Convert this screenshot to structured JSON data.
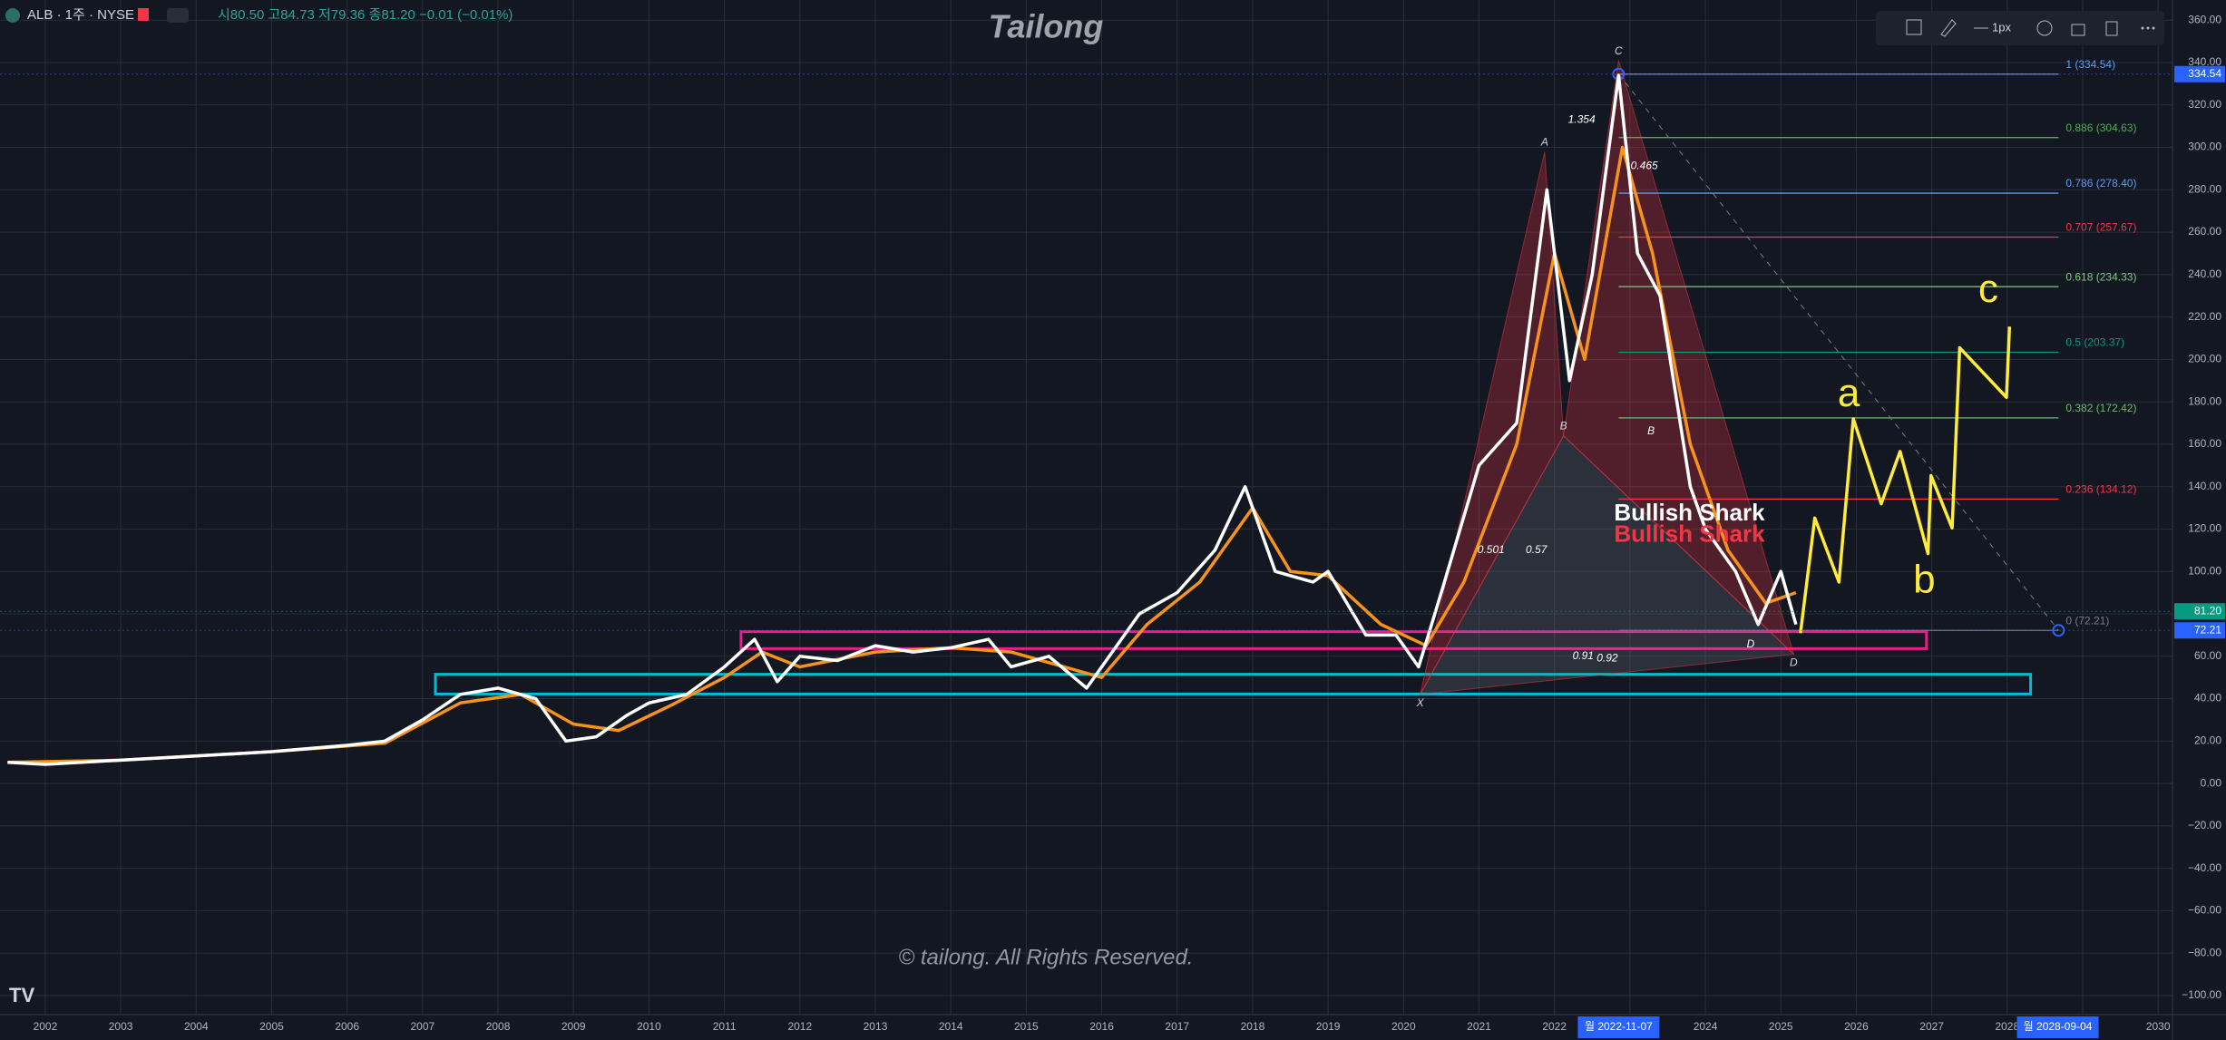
{
  "chart_data": {
    "type": "line",
    "title": "Tailong",
    "symbol": "ALB · 1주 · NYSE",
    "ohlc": "시80.50 고84.73 저79.36 종81.20 −0.01 (−0.01%)",
    "watermark": "© tailong. All Rights Reserved.",
    "toolbar": "1px",
    "grid": true,
    "xlim": [
      2001.4,
      2030.19
    ],
    "ylim": [
      -109,
      369.5
    ],
    "xticks": [
      2002,
      2003,
      2004,
      2005,
      2006,
      2007,
      2008,
      2009,
      2010,
      2011,
      2012,
      2013,
      2014,
      2015,
      2016,
      2017,
      2018,
      2019,
      2020,
      2021,
      2022,
      2023,
      2024,
      2025,
      2026,
      2027,
      2028,
      2029,
      2030
    ],
    "yticks": [
      {
        "value": -100,
        "label": "−100.00"
      },
      {
        "value": -80,
        "label": "−80.00"
      },
      {
        "value": -60,
        "label": "−60.00"
      },
      {
        "value": -40,
        "label": "−40.00"
      },
      {
        "value": -20,
        "label": "−20.00"
      },
      {
        "value": 0,
        "label": "0.00"
      },
      {
        "value": 20,
        "label": "20.00"
      },
      {
        "value": 40,
        "label": "40.00"
      },
      {
        "value": 60,
        "label": "60.00"
      },
      {
        "value": 80,
        "label": "80.00"
      },
      {
        "value": 100,
        "label": "100.00"
      },
      {
        "value": 120,
        "label": "120.00"
      },
      {
        "value": 140,
        "label": "140.00"
      },
      {
        "value": 160,
        "label": "160.00"
      },
      {
        "value": 180,
        "label": "180.00"
      },
      {
        "value": 200,
        "label": "200.00"
      },
      {
        "value": 220,
        "label": "220.00"
      },
      {
        "value": 240,
        "label": "240.00"
      },
      {
        "value": 260,
        "label": "260.00"
      },
      {
        "value": 280,
        "label": "280.00"
      },
      {
        "value": 300,
        "label": "300.00"
      },
      {
        "value": 320,
        "label": "320.00"
      },
      {
        "value": 340,
        "label": "340.00"
      },
      {
        "value": 360,
        "label": "360.00"
      }
    ],
    "series": [
      {
        "color": "#f7931a",
        "x": [
          2001.5,
          2003,
          2005,
          2006.5,
          2007.5,
          2008.3,
          2009,
          2009.6,
          2010.3,
          2011,
          2011.5,
          2012,
          2013,
          2014,
          2014.8,
          2015.5,
          2016,
          2016.6,
          2017.3,
          2018,
          2018.5,
          2019,
          2019.7,
          2020.3,
          2020.8,
          2021.5,
          2022,
          2022.4,
          2022.9,
          2023.3,
          2023.8,
          2024.3,
          2024.8,
          2025.2
        ],
        "values": [
          10,
          11,
          15,
          19,
          38,
          42,
          28,
          25,
          37,
          50,
          62,
          55,
          62,
          64,
          62,
          55,
          50,
          75,
          95,
          130,
          100,
          98,
          75,
          65,
          95,
          160,
          250,
          200,
          300,
          250,
          160,
          110,
          85,
          90
        ]
      },
      {
        "color": "#ffffff",
        "x": [
          2001.5,
          2002,
          2003,
          2004,
          2005,
          2006,
          2006.5,
          2007,
          2007.5,
          2008,
          2008.5,
          2008.9,
          2009.3,
          2009.7,
          2010,
          2010.5,
          2011,
          2011.4,
          2011.7,
          2012,
          2012.5,
          2013,
          2013.5,
          2014,
          2014.5,
          2014.8,
          2015.3,
          2015.8,
          2016,
          2016.5,
          2017,
          2017.5,
          2017.9,
          2018.3,
          2018.8,
          2019,
          2019.5,
          2019.9,
          2020.2,
          2020.5,
          2021,
          2021.5,
          2021.9,
          2022.2,
          2022.5,
          2022.85,
          2023.1,
          2023.4,
          2023.8,
          2024,
          2024.4,
          2024.7,
          2025,
          2025.2
        ],
        "values": [
          10,
          9,
          11,
          13,
          15,
          18,
          20,
          30,
          42,
          45,
          40,
          20,
          22,
          32,
          38,
          42,
          55,
          68,
          48,
          60,
          58,
          65,
          62,
          64,
          68,
          55,
          60,
          45,
          55,
          80,
          90,
          110,
          140,
          100,
          95,
          100,
          70,
          70,
          55,
          90,
          150,
          170,
          280,
          190,
          240,
          334,
          250,
          230,
          140,
          120,
          100,
          75,
          100,
          75
        ]
      },
      {
        "color": "#ffeb3b",
        "x": [
          2025.26,
          2025.45,
          2025.77,
          2025.96,
          2026.33,
          2026.58,
          2026.95,
          2026.99,
          2027.27,
          2027.37,
          2027.99,
          2028.03
        ],
        "values": [
          70.9,
          125.2,
          95,
          172,
          131.9,
          156.6,
          108.4,
          145.2,
          120.5,
          205.5,
          182.1,
          215.5
        ]
      }
    ],
    "fib_x": [
      2022.85,
      2028.68
    ],
    "fib_levels": [
      {
        "label": "1 (334.54)",
        "value": 334.54,
        "color": "#5b9cf6"
      },
      {
        "label": "0.886 (304.63)",
        "value": 304.63,
        "color": "#4caf50"
      },
      {
        "label": "0.786 (278.40)",
        "value": 278.4,
        "color": "#5b9cf6"
      },
      {
        "label": "0.707 (257.67)",
        "value": 257.67,
        "color": "#f23645"
      },
      {
        "label": "0.618 (234.33)",
        "value": 234.33,
        "color": "#81c784"
      },
      {
        "label": "0.5 (203.37)",
        "value": 203.37,
        "color": "#089981"
      },
      {
        "label": "0.382 (172.42)",
        "value": 172.42,
        "color": "#66bb6a"
      },
      {
        "label": "0.236 (134.12)",
        "value": 134.12,
        "color": "#f23645"
      },
      {
        "label": "0 (72.21)",
        "value": 72.21,
        "color": "#787b86"
      }
    ],
    "zones": [
      {
        "color": "#e91e8c",
        "x": [
          2011.22,
          2026.93
        ],
        "y": [
          63.6,
          71.6
        ]
      },
      {
        "color": "#00bcd4",
        "x": [
          2007.17,
          2028.31
        ],
        "y": [
          42.2,
          51.5
        ]
      }
    ],
    "pattern": [
      {
        "label": "X",
        "x": 2020.22,
        "y": 42
      },
      {
        "label": "A",
        "x": 2021.87,
        "y": 297.9
      },
      {
        "label": "B",
        "x": 2022.12,
        "y": 164
      },
      {
        "label": "C",
        "x": 2022.85,
        "y": 341
      },
      {
        "label": "D",
        "x": 2025.17,
        "y": 61
      }
    ],
    "annotations": [
      {
        "text": "1.354",
        "x": 2022.36,
        "y": 313,
        "color": "#ffffff"
      },
      {
        "text": "0.465",
        "x": 2023.19,
        "y": 291,
        "color": "#ffffff"
      },
      {
        "text": "0.501",
        "x": 2021.16,
        "y": 110,
        "color": "#ffffff"
      },
      {
        "text": "0.57",
        "x": 2021.76,
        "y": 110,
        "color": "#ffffff"
      },
      {
        "text": "0.91",
        "x": 2022.38,
        "y": 60,
        "color": "#ffffff"
      },
      {
        "text": "0.92",
        "x": 2022.7,
        "y": 59,
        "color": "#ffffff"
      },
      {
        "text": "B",
        "x": 2023.28,
        "y": 166,
        "color": "#ffffff"
      },
      {
        "text": "D",
        "x": 2024.6,
        "y": 65.6,
        "color": "#ffffff"
      },
      {
        "text": "Bullish Shark",
        "x": 2022.79,
        "y": 127,
        "color": "#ffffff"
      },
      {
        "text": "Bullish Shark",
        "x": 2022.79,
        "y": 117,
        "color": "#f23645"
      },
      {
        "text": "a",
        "x": 2025.9,
        "y": 183,
        "color": "#ffeb3b"
      },
      {
        "text": "b",
        "x": 2026.9,
        "y": 95,
        "color": "#ffeb3b"
      },
      {
        "text": "c",
        "x": 2027.75,
        "y": 232,
        "color": "#ffeb3b"
      }
    ],
    "price_tags": [
      {
        "value": 334.54,
        "color": "#2962ff"
      },
      {
        "value": 81.2,
        "label": "81.20",
        "color": "#089981"
      },
      {
        "value": 72.21,
        "color": "#2962ff"
      }
    ],
    "date_tags": [
      {
        "label": "월 2022-11-07",
        "x": 2022.85
      },
      {
        "label": "월 2028-09-04",
        "x": 2028.67
      }
    ]
  }
}
